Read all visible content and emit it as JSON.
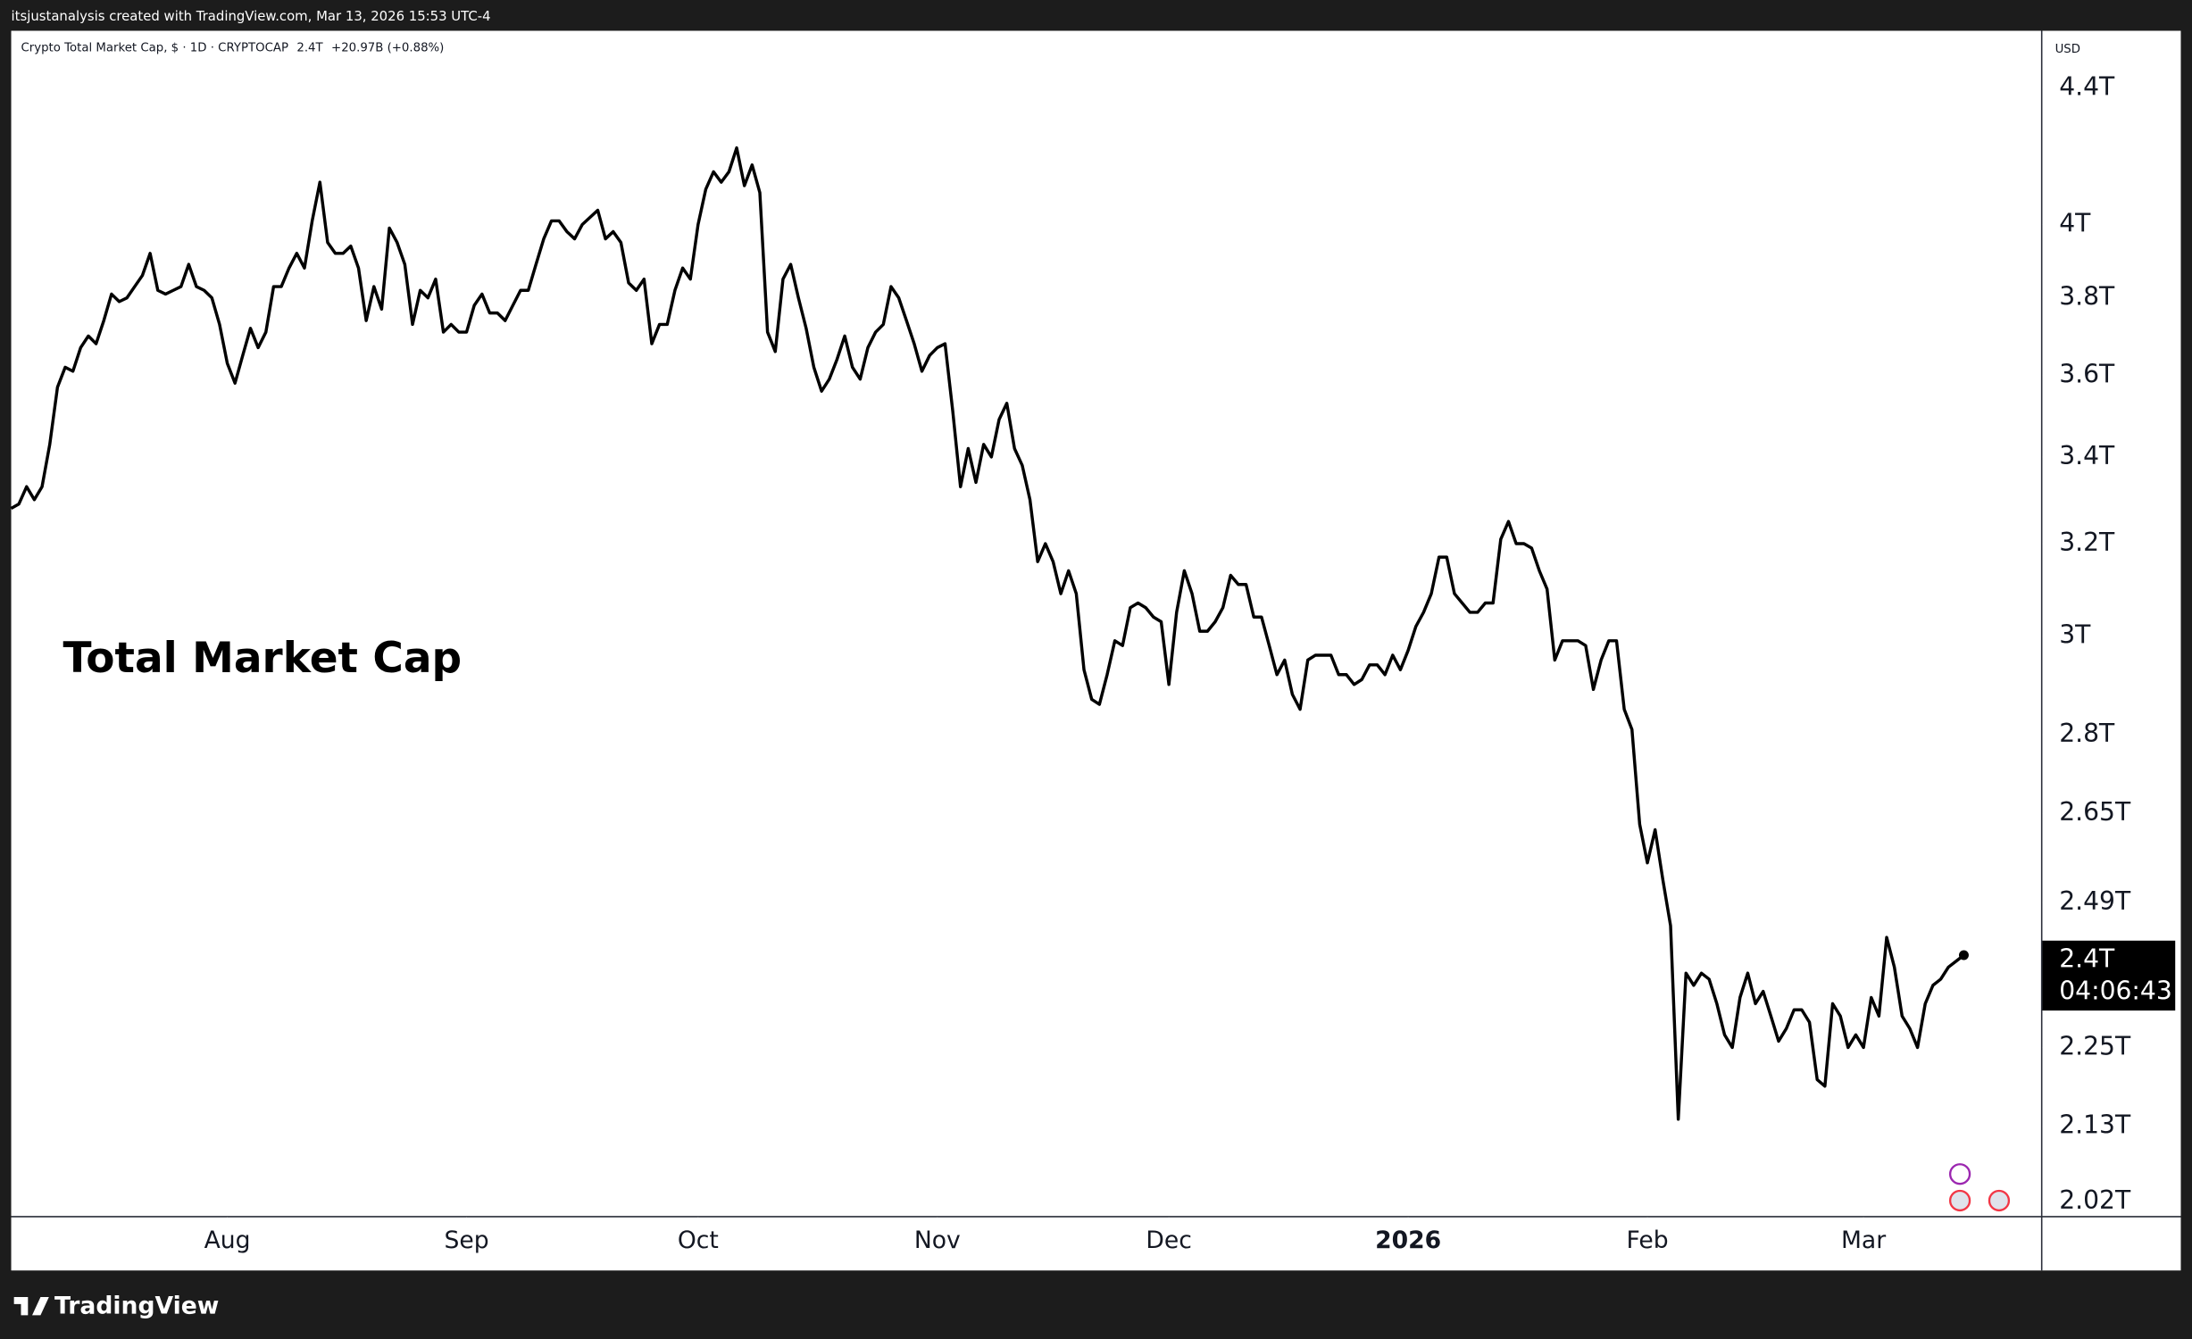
{
  "header": "itsjustanalysis created with TradingView.com, Mar 13, 2026 15:53 UTC-4",
  "legend": {
    "symbol": "Crypto Total Market Cap, $ · 1D · CRYPTOCAP",
    "last": "2.4T",
    "change": "+20.97B (+0.88%)"
  },
  "currency": "USD",
  "price_tag": {
    "price": "2.4T",
    "countdown": "04:06:43"
  },
  "footer": "TradingView",
  "chart_data": {
    "type": "line",
    "annotation": "Total Market Cap",
    "log_scale": true,
    "grid": false,
    "color": "#000000",
    "xlim": [
      0,
      263
    ],
    "ylim": [
      2.0,
      4.58
    ],
    "xticks": [
      {
        "value": 28,
        "label": "Aug"
      },
      {
        "value": 59,
        "label": "Sep"
      },
      {
        "value": 89,
        "label": "Oct"
      },
      {
        "value": 120,
        "label": "Nov"
      },
      {
        "value": 150,
        "label": "Dec"
      },
      {
        "value": 181,
        "label": "2026"
      },
      {
        "value": 212,
        "label": "Feb"
      },
      {
        "value": 240,
        "label": "Mar"
      }
    ],
    "yticks": [
      {
        "value": 4.4,
        "label": "4.4T"
      },
      {
        "value": 4,
        "label": "4T"
      },
      {
        "value": 3.8,
        "label": "3.8T"
      },
      {
        "value": 3.6,
        "label": "3.6T"
      },
      {
        "value": 3.4,
        "label": "3.4T"
      },
      {
        "value": 3.2,
        "label": "3.2T"
      },
      {
        "value": 3,
        "label": "3T"
      },
      {
        "value": 2.8,
        "label": "2.8T"
      },
      {
        "value": 2.65,
        "label": "2.65T"
      },
      {
        "value": 2.49,
        "label": "2.49T"
      },
      {
        "value": 2.25,
        "label": "2.25T"
      },
      {
        "value": 2.13,
        "label": "2.13T"
      },
      {
        "value": 2.02,
        "label": "2.02T"
      }
    ],
    "values": [
      3.28,
      3.29,
      3.33,
      3.3,
      3.33,
      3.43,
      3.57,
      3.62,
      3.61,
      3.67,
      3.7,
      3.68,
      3.74,
      3.81,
      3.79,
      3.8,
      3.83,
      3.86,
      3.92,
      3.82,
      3.81,
      3.82,
      3.83,
      3.89,
      3.83,
      3.82,
      3.8,
      3.73,
      3.63,
      3.58,
      3.65,
      3.72,
      3.67,
      3.71,
      3.83,
      3.83,
      3.88,
      3.92,
      3.88,
      4.01,
      4.12,
      3.95,
      3.92,
      3.92,
      3.94,
      3.88,
      3.74,
      3.83,
      3.77,
      3.99,
      3.95,
      3.89,
      3.73,
      3.82,
      3.8,
      3.85,
      3.71,
      3.73,
      3.71,
      3.71,
      3.78,
      3.81,
      3.76,
      3.76,
      3.74,
      3.78,
      3.82,
      3.82,
      3.89,
      3.96,
      4.01,
      4.01,
      3.98,
      3.96,
      4.0,
      4.02,
      4.04,
      3.96,
      3.98,
      3.95,
      3.84,
      3.82,
      3.85,
      3.68,
      3.73,
      3.73,
      3.82,
      3.88,
      3.85,
      4.0,
      4.1,
      4.15,
      4.12,
      4.15,
      4.22,
      4.11,
      4.17,
      4.09,
      3.71,
      3.66,
      3.85,
      3.89,
      3.8,
      3.72,
      3.62,
      3.56,
      3.59,
      3.64,
      3.7,
      3.62,
      3.59,
      3.67,
      3.71,
      3.73,
      3.83,
      3.8,
      3.74,
      3.68,
      3.61,
      3.65,
      3.67,
      3.68,
      3.51,
      3.33,
      3.42,
      3.34,
      3.43,
      3.4,
      3.49,
      3.53,
      3.42,
      3.38,
      3.3,
      3.16,
      3.2,
      3.16,
      3.09,
      3.14,
      3.09,
      2.93,
      2.87,
      2.86,
      2.92,
      2.99,
      2.98,
      3.06,
      3.07,
      3.06,
      3.04,
      3.03,
      2.9,
      3.05,
      3.14,
      3.09,
      3.01,
      3.01,
      3.03,
      3.06,
      3.13,
      3.11,
      3.11,
      3.04,
      3.04,
      2.98,
      2.92,
      2.95,
      2.88,
      2.85,
      2.95,
      2.96,
      2.96,
      2.96,
      2.92,
      2.92,
      2.9,
      2.91,
      2.94,
      2.94,
      2.92,
      2.96,
      2.93,
      2.97,
      3.02,
      3.05,
      3.09,
      3.17,
      3.17,
      3.09,
      3.07,
      3.05,
      3.05,
      3.07,
      3.07,
      3.21,
      3.25,
      3.2,
      3.2,
      3.19,
      3.14,
      3.1,
      2.95,
      2.99,
      2.99,
      2.99,
      2.98,
      2.89,
      2.95,
      2.99,
      2.99,
      2.85,
      2.81,
      2.63,
      2.56,
      2.62,
      2.53,
      2.45,
      2.14,
      2.37,
      2.35,
      2.37,
      2.36,
      2.32,
      2.27,
      2.25,
      2.33,
      2.37,
      2.32,
      2.34,
      2.3,
      2.26,
      2.28,
      2.31,
      2.31,
      2.29,
      2.2,
      2.19,
      2.32,
      2.3,
      2.25,
      2.27,
      2.25,
      2.33,
      2.3,
      2.43,
      2.38,
      2.3,
      2.28,
      2.25,
      2.32,
      2.35,
      2.36,
      2.38,
      2.39,
      2.4
    ]
  }
}
